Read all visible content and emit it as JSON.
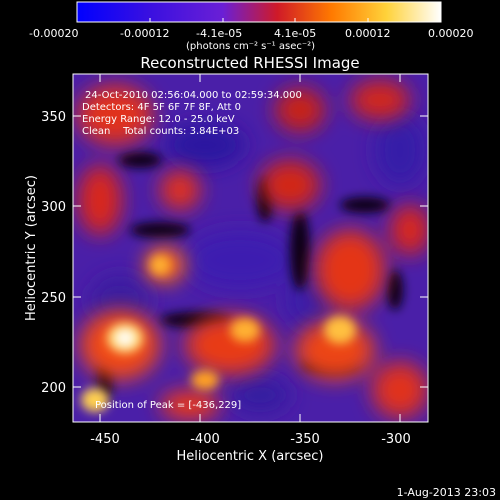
{
  "colorbar": {
    "tick_labels": [
      "-0.00020",
      "-0.00012",
      "-4.1e-05",
      "4.1e-05",
      "0.00012",
      "0.00020"
    ],
    "unit_label": "(photons cm⁻² s⁻¹ asec⁻²)",
    "colors": [
      "#0000ff",
      "#6a1fd6",
      "#cf1a28",
      "#ff7a00",
      "#ffd23a",
      "#ffffff"
    ]
  },
  "title": "Reconstructed RHESSI Image",
  "overlay": {
    "time_range": "24-Oct-2010 02:56:04.000 to 02:59:34.000",
    "detectors": "Detectors: 4F 5F 6F 7F 8F, Att 0",
    "energy": "Energy Range: 12.0 - 25.0 keV",
    "clean": "Clean    Total counts: 3.84E+03",
    "peak": "Position of Peak = [-436,229]"
  },
  "axes": {
    "xlabel": "Heliocentric X (arcsec)",
    "ylabel": "Heliocentric Y (arcsec)",
    "x_ticks": [
      "-450",
      "-400",
      "-350",
      "-300"
    ],
    "y_ticks": [
      "350",
      "300",
      "250",
      "200"
    ]
  },
  "footer": {
    "date": "1-Aug-2013 23:03"
  },
  "palette": {
    "background": "#000000",
    "map_low": "#3b1a8f",
    "map_mid": "#7a2fc0",
    "map_hot": "#e0301c",
    "map_peak": "#ffe07a"
  }
}
